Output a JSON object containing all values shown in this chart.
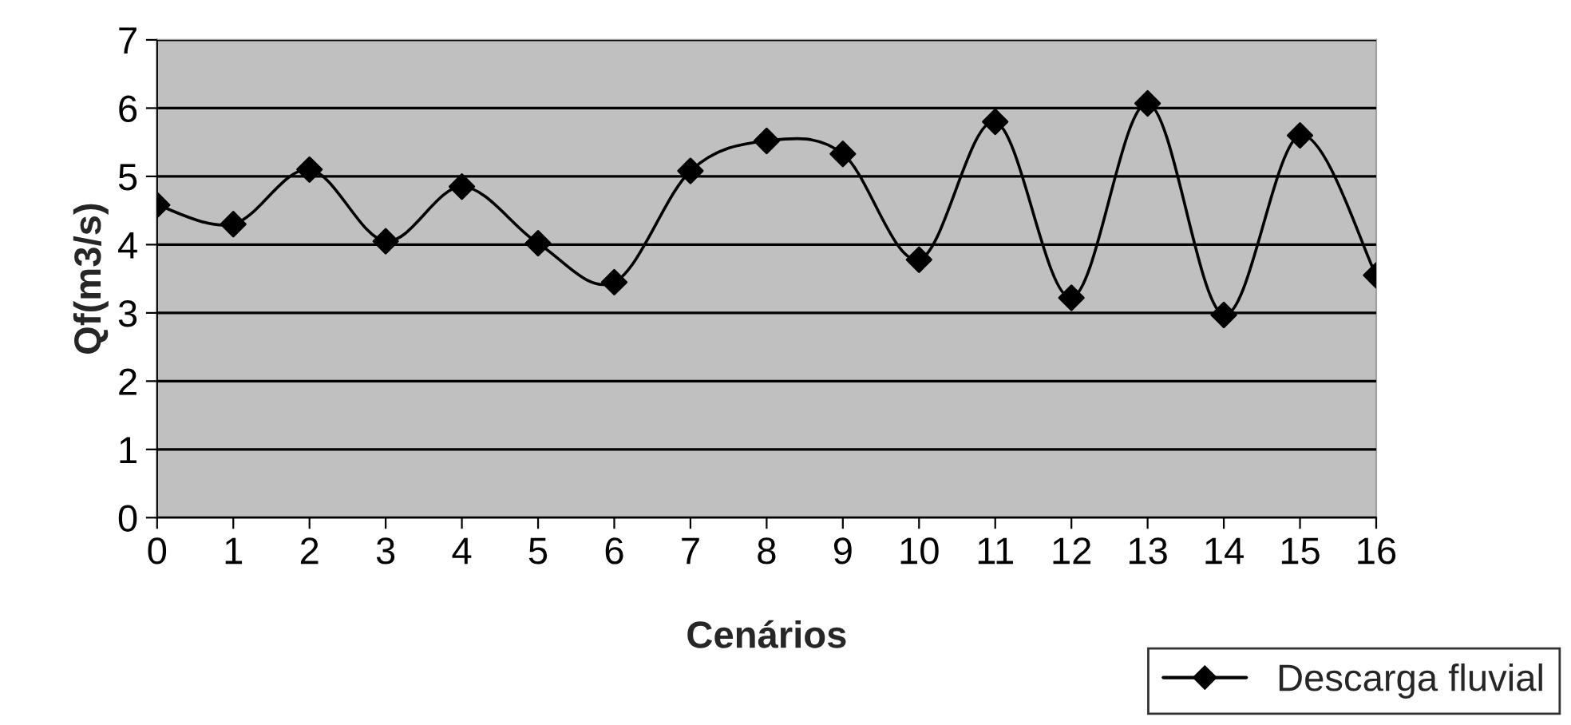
{
  "chart_data": {
    "type": "line",
    "xlabel": "Cenários",
    "ylabel": "Qf(m3/s)",
    "categories": [
      "0",
      "1",
      "2",
      "3",
      "4",
      "5",
      "6",
      "7",
      "8",
      "9",
      "10",
      "11",
      "12",
      "13",
      "14",
      "15",
      "16"
    ],
    "series": [
      {
        "name": "Descarga fluvial",
        "color": "#000000",
        "values": [
          4.58,
          4.3,
          5.1,
          4.05,
          4.85,
          4.02,
          3.45,
          5.08,
          5.52,
          5.33,
          3.78,
          5.8,
          3.22,
          6.07,
          2.97,
          5.6,
          3.55
        ]
      }
    ],
    "ylim": [
      0,
      7
    ],
    "yticks": [
      0,
      1,
      2,
      3,
      4,
      5,
      6,
      7
    ],
    "grid": "y",
    "legend": "bottom right",
    "marker": "diamond",
    "line_style": "solid"
  }
}
